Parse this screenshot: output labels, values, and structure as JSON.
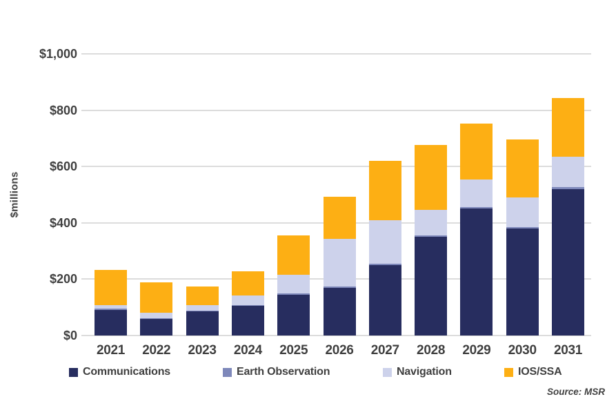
{
  "chart_data": {
    "type": "bar",
    "stacked": true,
    "title": "",
    "categories": [
      "2021",
      "2022",
      "2023",
      "2024",
      "2025",
      "2026",
      "2027",
      "2028",
      "2029",
      "2030",
      "2031"
    ],
    "series": [
      {
        "name": "Communications",
        "color": "#272D5F",
        "values": [
          90,
          58,
          85,
          105,
          145,
          168,
          250,
          350,
          450,
          380,
          520
        ]
      },
      {
        "name": "Earth Observation",
        "color": "#7E88BA",
        "values": [
          5,
          4,
          4,
          4,
          5,
          5,
          5,
          5,
          5,
          5,
          6
        ]
      },
      {
        "name": "Navigation",
        "color": "#CDD2EB",
        "values": [
          12,
          19,
          20,
          32,
          65,
          170,
          155,
          92,
          99,
          105,
          108
        ]
      },
      {
        "name": "IOS/SSA",
        "color": "#FDAF14",
        "values": [
          125,
          107,
          66,
          88,
          140,
          150,
          210,
          230,
          198,
          205,
          210
        ]
      }
    ],
    "totals": [
      232,
      188,
      175,
      229,
      355,
      493,
      620,
      677,
      752,
      695,
      844
    ],
    "xlabel": "",
    "ylabel": "$millions",
    "ylim": [
      0,
      1000
    ],
    "ytick_values": [
      0,
      200,
      400,
      600,
      800,
      1000
    ],
    "ytick_labels": [
      "$0",
      "$200",
      "$400",
      "$600",
      "$800",
      "$1,000"
    ],
    "grid": true,
    "legend_position": "bottom"
  },
  "source": {
    "text": "Source: MSR"
  },
  "colors": {
    "text": "#3F3F3F",
    "gridline": "#DCDCDC",
    "background": "#FFFFFF"
  }
}
